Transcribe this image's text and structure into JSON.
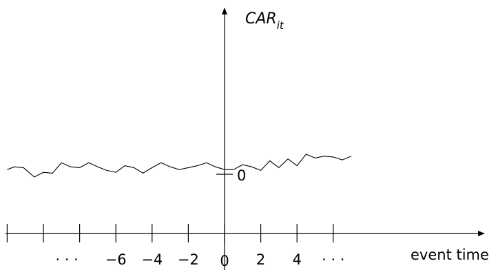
{
  "chart_data": {
    "type": "line",
    "title": "",
    "ylabel": {
      "main": "CAR",
      "sub": "it"
    },
    "xlabel": "event time",
    "y_zero_label": "0",
    "xlim": [
      -12,
      12
    ],
    "x_tick_positions": [
      -12,
      -10,
      -8,
      -6,
      -4,
      -2,
      0,
      2,
      4,
      6
    ],
    "x_tick_labels": [
      {
        "x": -8.7,
        "text": "· · ·"
      },
      {
        "x": -6,
        "text": "−6"
      },
      {
        "x": -4,
        "text": "−4"
      },
      {
        "x": -2,
        "text": "−2"
      },
      {
        "x": 0,
        "text": "0"
      },
      {
        "x": 2,
        "text": "2"
      },
      {
        "x": 4,
        "text": "4"
      },
      {
        "x": 6,
        "text": "· · ·"
      }
    ],
    "grid": false,
    "legend": "none",
    "series": [
      {
        "x": [
          -12,
          -11.6,
          -11.1,
          -10.5,
          -10,
          -9.5,
          -9,
          -8.5,
          -8,
          -7.5,
          -7,
          -6.5,
          -6,
          -5.5,
          -5,
          -4.5,
          -4,
          -3.5,
          -3,
          -2.5,
          -2,
          -1.5,
          -1,
          -0.5,
          0,
          0.5,
          1,
          1.5,
          2,
          2.5,
          3,
          3.5,
          4,
          4.5,
          5,
          5.5,
          6,
          6.5,
          7
        ],
        "y": [
          0.22,
          0.35,
          0.31,
          -0.13,
          0.09,
          0.05,
          0.54,
          0.35,
          0.31,
          0.54,
          0.35,
          0.18,
          0.09,
          0.4,
          0.31,
          0.05,
          0.31,
          0.54,
          0.35,
          0.22,
          0.31,
          0.4,
          0.54,
          0.35,
          0.22,
          0.22,
          0.45,
          0.35,
          0.18,
          0.63,
          0.31,
          0.72,
          0.4,
          0.94,
          0.76,
          0.85,
          0.81,
          0.67,
          0.85
        ],
        "color": "#000000"
      }
    ]
  }
}
